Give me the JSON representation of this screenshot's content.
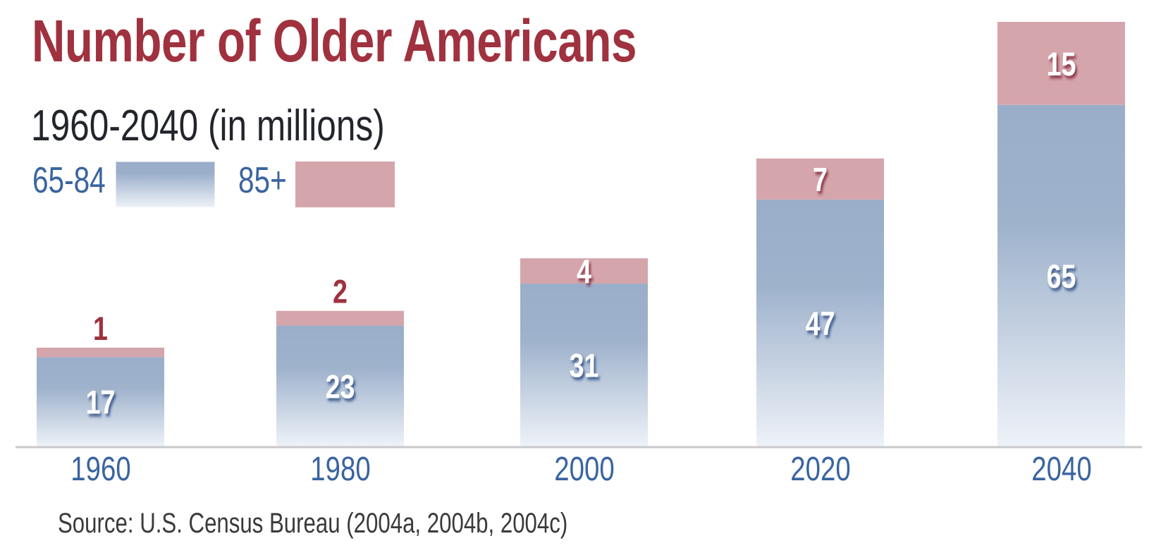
{
  "chart_data": {
    "type": "bar",
    "stacked": true,
    "title": "Number of Older Americans",
    "subtitle": "1960-2040 (in millions)",
    "xlabel": "",
    "ylabel": "",
    "units": "millions",
    "categories": [
      "1960",
      "1980",
      "2000",
      "2020",
      "2040"
    ],
    "series": [
      {
        "name": "65-84",
        "color": "#9aaeca",
        "values": [
          17,
          23,
          31,
          47,
          65
        ]
      },
      {
        "name": "85+",
        "color": "#d5a5ac",
        "values": [
          1,
          2,
          4,
          7,
          15
        ]
      }
    ],
    "ylim": [
      0,
      80
    ],
    "grid": false,
    "legend_position": "top-left",
    "source": "Source: U.S. Census Bureau (2004a, 2004b, 2004c)"
  },
  "colors": {
    "title": "#a0313e",
    "axis_labels": "#3a64a0",
    "outside_label": "#a0313e",
    "inside_label": "#ffffff",
    "axis_line": "#c9c9cb"
  }
}
